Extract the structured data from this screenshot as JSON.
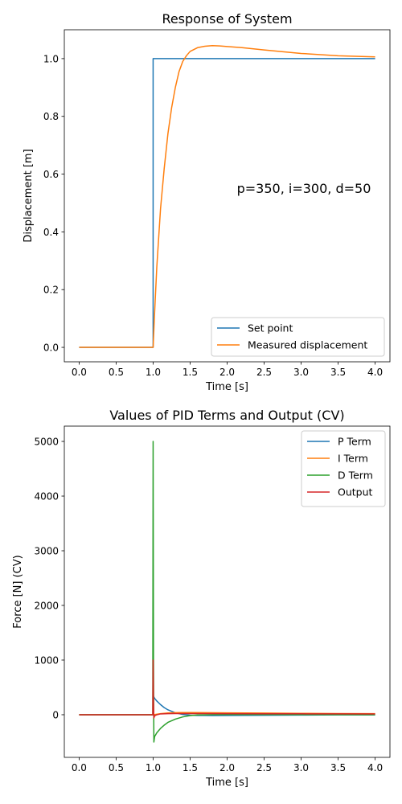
{
  "chart_data": [
    {
      "type": "line",
      "title": "Response of System",
      "xlabel": "Time [s]",
      "ylabel": "Displacement [m]",
      "xlim": [
        -0.2,
        4.2
      ],
      "ylim": [
        -0.05,
        1.1
      ],
      "xticks": [
        "0.0",
        "0.5",
        "1.0",
        "1.5",
        "2.0",
        "2.5",
        "3.0",
        "3.5",
        "4.0"
      ],
      "yticks": [
        "0.0",
        "0.2",
        "0.4",
        "0.6",
        "0.8",
        "1.0"
      ],
      "annotation": "p=350, i=300, d=50",
      "legend": "lower-right",
      "grid": false,
      "series": [
        {
          "name": "Set point",
          "color": "#1f77b4",
          "x": [
            0,
            1.0,
            1.0,
            4.0
          ],
          "y": [
            0,
            0,
            1,
            1
          ]
        },
        {
          "name": "Measured displacement",
          "color": "#ff7f0e",
          "x": [
            0,
            1.0,
            1.02,
            1.05,
            1.1,
            1.15,
            1.2,
            1.25,
            1.3,
            1.35,
            1.4,
            1.45,
            1.5,
            1.6,
            1.7,
            1.8,
            1.9,
            2.0,
            2.2,
            2.5,
            3.0,
            3.5,
            4.0
          ],
          "y": [
            0,
            0,
            0.12,
            0.28,
            0.48,
            0.62,
            0.74,
            0.83,
            0.9,
            0.955,
            0.99,
            1.01,
            1.025,
            1.038,
            1.043,
            1.045,
            1.044,
            1.042,
            1.038,
            1.03,
            1.018,
            1.01,
            1.006
          ]
        }
      ]
    },
    {
      "type": "line",
      "title": "Values of PID Terms and Output (CV)",
      "xlabel": "Time [s]",
      "ylabel": "Force [N] (CV)",
      "xlim": [
        -0.2,
        4.2
      ],
      "ylim": [
        -780,
        5280
      ],
      "xticks": [
        "0.0",
        "0.5",
        "1.0",
        "1.5",
        "2.0",
        "2.5",
        "3.0",
        "3.5",
        "4.0"
      ],
      "yticks": [
        "0",
        "1000",
        "2000",
        "3000",
        "4000",
        "5000"
      ],
      "legend": "upper-right",
      "grid": false,
      "series": [
        {
          "name": "P Term",
          "color": "#1f77b4",
          "x": [
            0,
            1.0,
            1.0,
            1.02,
            1.05,
            1.1,
            1.15,
            1.2,
            1.3,
            1.4,
            1.5,
            1.6,
            1.8,
            2.0,
            2.5,
            3.0,
            3.5,
            4.0
          ],
          "y": [
            0,
            0,
            350,
            300,
            250,
            185,
            130,
            90,
            35,
            5,
            -8,
            -13,
            -15,
            -14,
            -10,
            -6,
            -3,
            -2
          ]
        },
        {
          "name": "I Term",
          "color": "#ff7f0e",
          "x": [
            0,
            1.0,
            1.1,
            1.2,
            1.3,
            1.4,
            1.5,
            2.0,
            2.5,
            3.0,
            3.5,
            4.0
          ],
          "y": [
            0,
            0,
            20,
            32,
            38,
            40,
            40,
            35,
            30,
            25,
            22,
            20
          ]
        },
        {
          "name": "D Term",
          "color": "#2ca02c",
          "x": [
            0,
            0.995,
            1.0,
            1.005,
            1.01,
            1.02,
            1.05,
            1.1,
            1.15,
            1.2,
            1.3,
            1.4,
            1.5,
            1.6,
            1.8,
            2.0,
            2.5,
            3.0,
            4.0
          ],
          "y": [
            0,
            0,
            5000,
            1000,
            -500,
            -400,
            -330,
            -250,
            -190,
            -140,
            -80,
            -40,
            -15,
            -5,
            2,
            3,
            3,
            2,
            0
          ]
        },
        {
          "name": "Output",
          "color": "#d62728",
          "x": [
            0,
            0.995,
            1.0,
            1.005,
            1.01,
            1.02,
            1.05,
            1.1,
            1.2,
            1.3,
            1.5,
            2.0,
            2.5,
            3.0,
            3.5,
            4.0
          ],
          "y": [
            0,
            0,
            1000,
            200,
            -60,
            -20,
            0,
            15,
            20,
            22,
            22,
            20,
            18,
            17,
            16,
            15
          ]
        }
      ]
    }
  ]
}
